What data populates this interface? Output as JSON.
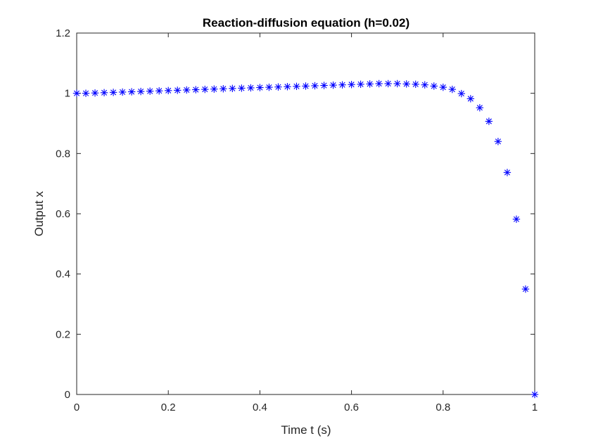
{
  "chart_data": {
    "type": "scatter",
    "title": "Reaction-diffusion equation (h=0.02)",
    "xlabel": "Time t (s)",
    "ylabel": "Output x",
    "xlim": [
      0,
      1
    ],
    "ylim": [
      0,
      1.2
    ],
    "xticks": [
      0,
      0.2,
      0.4,
      0.6,
      0.8,
      1
    ],
    "xtick_labels": [
      "0",
      "0.2",
      "0.4",
      "0.6",
      "0.8",
      "1"
    ],
    "yticks": [
      0,
      0.2,
      0.4,
      0.6,
      0.8,
      1,
      1.2
    ],
    "ytick_labels": [
      "0",
      "0.2",
      "0.4",
      "0.6",
      "0.8",
      "1",
      "1.2"
    ],
    "grid": false,
    "box": true,
    "marker": "asterisk",
    "marker_color": "#0000ff",
    "series": [
      {
        "x": [
          0,
          0.02,
          0.04,
          0.06,
          0.08,
          0.1,
          0.12,
          0.14,
          0.16,
          0.18,
          0.2,
          0.22,
          0.24,
          0.26,
          0.28,
          0.3,
          0.32,
          0.34,
          0.36,
          0.38,
          0.4,
          0.42,
          0.44,
          0.46,
          0.48,
          0.5,
          0.52,
          0.54,
          0.56,
          0.58,
          0.6,
          0.62,
          0.64,
          0.66,
          0.68,
          0.7,
          0.72,
          0.74,
          0.76,
          0.78,
          0.8,
          0.82,
          0.84,
          0.86,
          0.88,
          0.9,
          0.92,
          0.94,
          0.96,
          0.98,
          1
        ],
        "y": [
          1.0,
          1.0,
          1.001,
          1.002,
          1.003,
          1.004,
          1.005,
          1.006,
          1.007,
          1.008,
          1.009,
          1.01,
          1.011,
          1.012,
          1.013,
          1.014,
          1.015,
          1.016,
          1.017,
          1.018,
          1.019,
          1.02,
          1.021,
          1.022,
          1.023,
          1.024,
          1.025,
          1.026,
          1.027,
          1.028,
          1.029,
          1.03,
          1.031,
          1.032,
          1.032,
          1.032,
          1.031,
          1.03,
          1.028,
          1.024,
          1.02,
          1.013,
          0.999,
          0.982,
          0.952,
          0.907,
          0.84,
          0.737,
          0.582,
          0.35,
          0.0
        ]
      }
    ]
  }
}
